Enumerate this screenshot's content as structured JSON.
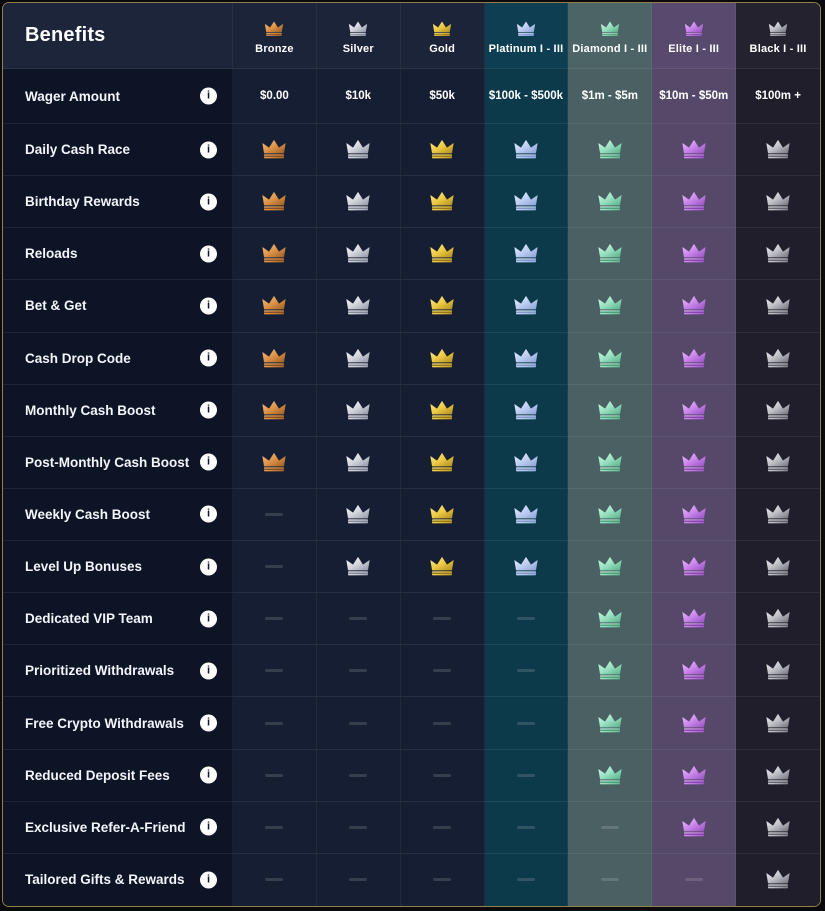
{
  "table": {
    "title": "Benefits",
    "icons": {
      "info_glyph": "i"
    },
    "colors": {
      "page_bg": "#0a0a0e",
      "border": "#91804a",
      "header_label_bg": "#1c2539",
      "label_col_bg": "#0d1426",
      "divider_h": "rgba(255,255,255,0.07)",
      "divider_v": "rgba(255,255,255,0.05)",
      "dash": "rgba(255,255,255,0.14)",
      "info_bg": "#ffffff",
      "info_fg": "#0e1628",
      "text": "#ffffff"
    },
    "tiers": [
      {
        "name": "Bronze",
        "wager": "$0.00",
        "header_bg": "#1c2439",
        "body_bg": "#161e33",
        "crown": {
          "light": "#f6c083",
          "mid": "#dd9347",
          "dark": "#9a5c22",
          "band": "#7c4518"
        }
      },
      {
        "name": "Silver",
        "wager": "$10k",
        "header_bg": "#1c2439",
        "body_bg": "#161e33",
        "crown": {
          "light": "#ffffff",
          "mid": "#d2d5dd",
          "dark": "#8f95a4",
          "band": "#767c8b"
        }
      },
      {
        "name": "Gold",
        "wager": "$50k",
        "header_bg": "#1c2439",
        "body_bg": "#161e33",
        "crown": {
          "light": "#fdee92",
          "mid": "#edca43",
          "dark": "#ad8a1e",
          "band": "#8c6d12"
        }
      },
      {
        "name": "Platinum I - III",
        "wager": "$100k - $500k",
        "header_bg": "#0e3e51",
        "body_bg": "#0d3a4b",
        "crown": {
          "light": "#ecf2fe",
          "mid": "#bdcef1",
          "dark": "#88a1d3",
          "band": "#7590c4"
        }
      },
      {
        "name": "Diamond I - III",
        "wager": "$1m - $5m",
        "header_bg": "#4c6466",
        "body_bg": "#4a6062",
        "crown": {
          "light": "#dcf8eb",
          "mid": "#97e1c1",
          "dark": "#58ad89",
          "band": "#479672"
        }
      },
      {
        "name": "Elite I - III",
        "wager": "$10m - $50m",
        "header_bg": "#584a6e",
        "body_bg": "#554869",
        "crown": {
          "light": "#f0c3fd",
          "mid": "#cb85ec",
          "dark": "#9550bf",
          "band": "#7f3fa8"
        }
      },
      {
        "name": "Black I - III",
        "wager": "$100m +",
        "header_bg": "#252230",
        "body_bg": "#211e2b",
        "crown": {
          "light": "#f4f4f6",
          "mid": "#bfbfc7",
          "dark": "#70707a",
          "band": "#585862"
        }
      }
    ],
    "wager_row": {
      "label": "Wager Amount"
    },
    "benefits": [
      {
        "label": "Daily Cash Race",
        "availability": [
          true,
          true,
          true,
          true,
          true,
          true,
          true
        ]
      },
      {
        "label": "Birthday Rewards",
        "availability": [
          true,
          true,
          true,
          true,
          true,
          true,
          true
        ]
      },
      {
        "label": "Reloads",
        "availability": [
          true,
          true,
          true,
          true,
          true,
          true,
          true
        ]
      },
      {
        "label": "Bet & Get",
        "availability": [
          true,
          true,
          true,
          true,
          true,
          true,
          true
        ]
      },
      {
        "label": "Cash Drop Code",
        "availability": [
          true,
          true,
          true,
          true,
          true,
          true,
          true
        ]
      },
      {
        "label": "Monthly Cash Boost",
        "availability": [
          true,
          true,
          true,
          true,
          true,
          true,
          true
        ]
      },
      {
        "label": "Post-Monthly Cash Boost",
        "availability": [
          true,
          true,
          true,
          true,
          true,
          true,
          true
        ]
      },
      {
        "label": "Weekly Cash Boost",
        "availability": [
          false,
          true,
          true,
          true,
          true,
          true,
          true
        ]
      },
      {
        "label": "Level Up Bonuses",
        "availability": [
          false,
          true,
          true,
          true,
          true,
          true,
          true
        ]
      },
      {
        "label": "Dedicated VIP Team",
        "availability": [
          false,
          false,
          false,
          false,
          true,
          true,
          true
        ]
      },
      {
        "label": "Prioritized Withdrawals",
        "availability": [
          false,
          false,
          false,
          false,
          true,
          true,
          true
        ]
      },
      {
        "label": "Free Crypto Withdrawals",
        "availability": [
          false,
          false,
          false,
          false,
          true,
          true,
          true
        ]
      },
      {
        "label": "Reduced Deposit Fees",
        "availability": [
          false,
          false,
          false,
          false,
          true,
          true,
          true
        ]
      },
      {
        "label": "Exclusive Refer-A-Friend",
        "availability": [
          false,
          false,
          false,
          false,
          false,
          true,
          true
        ]
      },
      {
        "label": "Tailored Gifts & Rewards",
        "availability": [
          false,
          false,
          false,
          false,
          false,
          false,
          true
        ]
      }
    ]
  }
}
